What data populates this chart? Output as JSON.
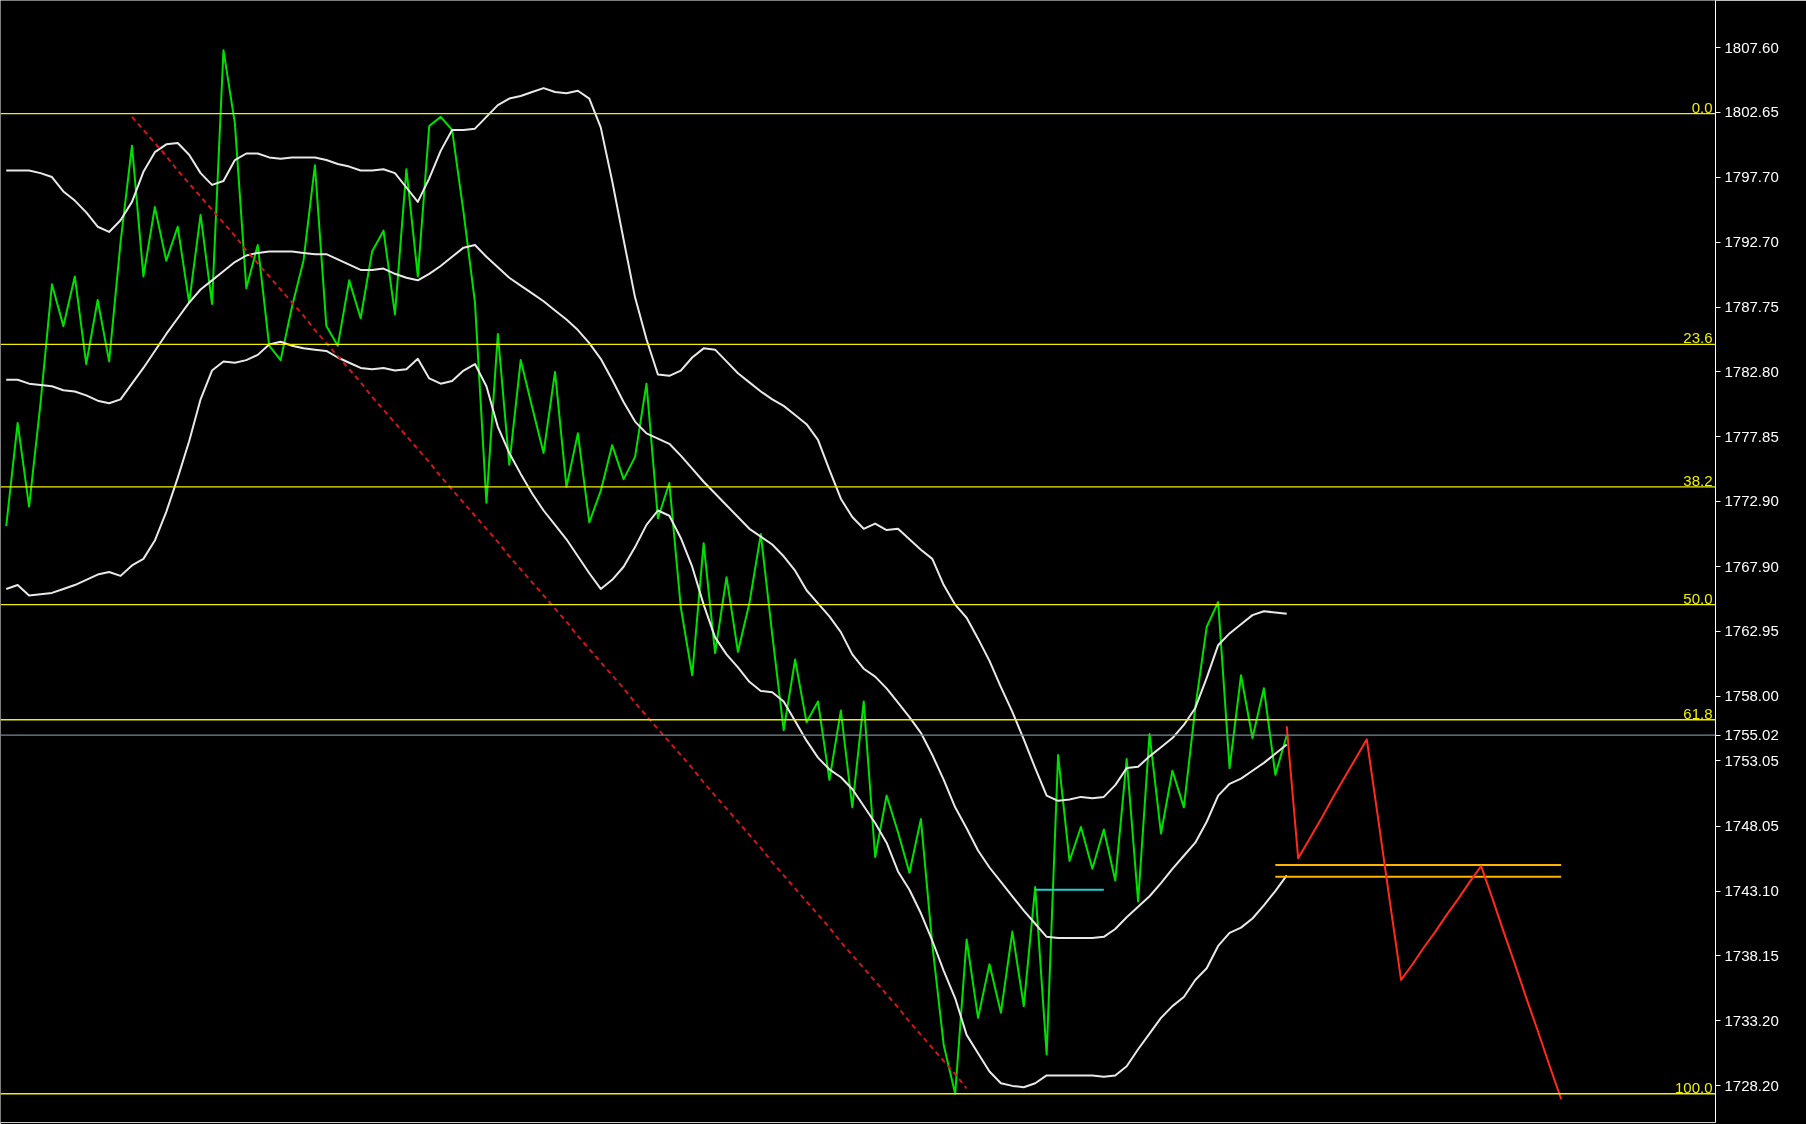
{
  "chart_data": {
    "type": "line",
    "categories": [
      null,
      null,
      null,
      null,
      null,
      null,
      null,
      null,
      null,
      null,
      null,
      null,
      null,
      null,
      null,
      null,
      null,
      null,
      null,
      null,
      null,
      null,
      null,
      null,
      null,
      null,
      null,
      null,
      null,
      null,
      null,
      null,
      null,
      null,
      null,
      null,
      null,
      null,
      null,
      null,
      null,
      null,
      null,
      null,
      null,
      null,
      null,
      null,
      null,
      null,
      null,
      null,
      null,
      null,
      null,
      null,
      null,
      null,
      null,
      null,
      null,
      null,
      null,
      null,
      null,
      null,
      null,
      null,
      null,
      null,
      null,
      null,
      null,
      null,
      null,
      null,
      null,
      null,
      null,
      null,
      null,
      null,
      null,
      null,
      null,
      null,
      null,
      null,
      null,
      null,
      null,
      null,
      null,
      null,
      null,
      null,
      null,
      null,
      null,
      null,
      null,
      null,
      null,
      null,
      null,
      null,
      null,
      null,
      null,
      null,
      null,
      null,
      null,
      null,
      null,
      null,
      null,
      null,
      null,
      null,
      null,
      null,
      null,
      null,
      null,
      null,
      null,
      null,
      null,
      null,
      null,
      null,
      null,
      null,
      null,
      null,
      null,
      null,
      null,
      null,
      null,
      null,
      null,
      null,
      null,
      null,
      null,
      null,
      null,
      null
    ],
    "ylim": [
      1725.4,
      1811.2
    ],
    "yticks": [
      {
        "value": 1807.6,
        "label": "1807.60"
      },
      {
        "value": 1802.65,
        "label": "1802.65"
      },
      {
        "value": 1797.7,
        "label": "1797.70"
      },
      {
        "value": 1792.7,
        "label": "1792.70"
      },
      {
        "value": 1787.75,
        "label": "1787.75"
      },
      {
        "value": 1782.8,
        "label": "1782.80"
      },
      {
        "value": 1777.85,
        "label": "1777.85"
      },
      {
        "value": 1772.9,
        "label": "1772.90"
      },
      {
        "value": 1767.9,
        "label": "1767.90"
      },
      {
        "value": 1762.95,
        "label": "1762.95"
      },
      {
        "value": 1758.0,
        "label": "1758.00"
      },
      {
        "value": 1755.02,
        "label": "1755.02"
      },
      {
        "value": 1753.05,
        "label": "1753.05"
      },
      {
        "value": 1748.05,
        "label": "1748.05"
      },
      {
        "value": 1743.1,
        "label": "1743.10"
      },
      {
        "value": 1738.15,
        "label": "1738.15"
      },
      {
        "value": 1733.2,
        "label": "1733.20"
      },
      {
        "value": 1728.2,
        "label": "1728.20"
      }
    ],
    "tick_labels": "y",
    "series": [
      {
        "color": "#00e000",
        "values": [
          1771.0,
          1778.9,
          1772.5,
          1780.4,
          1789.5,
          1786.3,
          1790.1,
          1783.4,
          1788.3,
          1783.6,
          1792.7,
          1800.1,
          1790.1,
          1795.4,
          1791.3,
          1793.9,
          1788.1,
          1794.8,
          1788.0,
          1807.4,
          1801.8,
          1789.2,
          1792.5,
          1784.8,
          1783.7,
          1787.8,
          1791.3,
          1798.6,
          1786.3,
          1784.8,
          1789.8,
          1786.9,
          1792.0,
          1793.6,
          1787.2,
          1798.3,
          1790.1,
          1801.6,
          1802.3,
          1801.3,
          1795.0,
          1788.1,
          1772.8,
          1785.7,
          1775.7,
          1783.7,
          1780.1,
          1776.6,
          1782.8,
          1774.0,
          1778.1,
          1771.3,
          1773.7,
          1777.2,
          1774.6,
          1776.3,
          1781.9,
          1771.6,
          1774.3,
          1764.8,
          1759.6,
          1769.7,
          1761.3,
          1767.1,
          1761.4,
          1765.1,
          1770.4,
          1762.7,
          1755.4,
          1760.8,
          1756.0,
          1757.6,
          1751.6,
          1756.9,
          1749.5,
          1757.6,
          1745.7,
          1750.4,
          1747.6,
          1744.5,
          1748.6,
          1739.0,
          1731.3,
          1727.6,
          1739.4,
          1733.4,
          1737.5,
          1733.8,
          1740.0,
          1734.3,
          1743.4,
          1730.6,
          1753.5,
          1745.4,
          1748.0,
          1744.8,
          1747.8,
          1743.9,
          1753.2,
          1742.3,
          1755.1,
          1747.5,
          1752.3,
          1749.5,
          1757.1,
          1763.3,
          1765.2,
          1752.5,
          1759.6,
          1754.8,
          1758.6,
          1752.0,
          1755.0,
          null,
          null,
          null,
          null,
          null,
          null,
          null,
          null,
          null,
          null,
          null,
          null,
          null,
          null,
          null,
          null,
          null,
          null,
          null,
          null,
          null,
          null,
          null,
          null,
          null,
          null,
          null,
          null,
          null,
          null,
          null,
          null,
          null,
          null,
          null,
          null,
          null
        ]
      },
      {
        "color": "#e8e8e8",
        "values": [
          1798.2,
          1798.2,
          1798.2,
          1798.0,
          1797.7,
          1796.6,
          1795.9,
          1795.0,
          1793.9,
          1793.5,
          1794.4,
          1795.8,
          1798.1,
          1799.6,
          1800.2,
          1800.3,
          1799.4,
          1798.0,
          1797.1,
          1797.4,
          1799.0,
          1799.5,
          1799.5,
          1799.2,
          1799.1,
          1799.2,
          1799.2,
          1799.2,
          1799.0,
          1798.7,
          1798.5,
          1798.2,
          1798.2,
          1798.3,
          1798.0,
          1796.9,
          1795.8,
          1797.6,
          1799.7,
          1801.3,
          1801.3,
          1801.4,
          1802.3,
          1803.2,
          1803.7,
          1803.9,
          1804.2,
          1804.5,
          1804.2,
          1804.1,
          1804.3,
          1803.7,
          1801.5,
          1797.4,
          1792.9,
          1788.5,
          1785.3,
          1782.6,
          1782.5,
          1782.9,
          1783.9,
          1784.6,
          1784.5,
          1783.6,
          1782.7,
          1782.0,
          1781.3,
          1780.7,
          1780.2,
          1779.5,
          1778.8,
          1777.6,
          1775.3,
          1773.1,
          1771.7,
          1770.8,
          1771.2,
          1770.7,
          1770.8,
          1770.0,
          1769.2,
          1768.5,
          1766.5,
          1765.0,
          1764.0,
          1762.4,
          1760.7,
          1758.7,
          1756.8,
          1754.7,
          1752.5,
          1750.4,
          1750.0,
          1750.1,
          1750.3,
          1750.2,
          1750.3,
          1751.2,
          1752.5,
          1752.6,
          1753.4,
          1754.1,
          1754.8,
          1755.8,
          1757.1,
          1759.4,
          1761.9,
          1762.8,
          1763.5,
          1764.2,
          1764.5,
          1764.4,
          1764.3,
          null,
          null,
          null,
          null,
          null,
          null,
          null,
          null,
          null,
          null,
          null,
          null,
          null,
          null,
          null,
          null,
          null,
          null,
          null,
          null,
          null,
          null,
          null,
          null,
          null,
          null,
          null,
          null,
          null,
          null,
          null,
          null,
          null,
          null,
          null,
          null,
          null
        ]
      },
      {
        "color": "#e8e8e8",
        "values": [
          1782.2,
          1782.2,
          1781.9,
          1781.8,
          1781.7,
          1781.4,
          1781.3,
          1781.0,
          1780.6,
          1780.4,
          1780.7,
          1781.9,
          1783.1,
          1784.4,
          1785.7,
          1786.9,
          1788.1,
          1789.1,
          1789.8,
          1790.5,
          1791.2,
          1791.7,
          1791.9,
          1792.0,
          1792.0,
          1792.0,
          1791.9,
          1791.8,
          1791.8,
          1791.4,
          1791.0,
          1790.6,
          1790.6,
          1790.7,
          1790.3,
          1790.0,
          1789.8,
          1790.3,
          1790.9,
          1791.6,
          1792.3,
          1792.5,
          1791.6,
          1790.8,
          1790.0,
          1789.4,
          1788.8,
          1788.2,
          1787.5,
          1786.8,
          1786.0,
          1785.0,
          1783.8,
          1782.2,
          1780.5,
          1779.0,
          1778.1,
          1777.7,
          1777.3,
          1776.4,
          1775.4,
          1774.4,
          1773.5,
          1772.6,
          1771.7,
          1770.8,
          1770.2,
          1769.6,
          1768.7,
          1767.6,
          1766.1,
          1765.1,
          1764.1,
          1762.9,
          1761.2,
          1760.1,
          1759.5,
          1758.6,
          1757.5,
          1756.4,
          1755.2,
          1753.5,
          1751.6,
          1749.5,
          1747.9,
          1746.2,
          1744.9,
          1743.8,
          1742.7,
          1741.6,
          1740.6,
          1739.6,
          1739.5,
          1739.5,
          1739.5,
          1739.5,
          1739.6,
          1740.2,
          1741.1,
          1741.9,
          1742.7,
          1743.7,
          1744.8,
          1745.8,
          1746.8,
          1748.4,
          1750.4,
          1751.3,
          1751.7,
          1752.3,
          1752.9,
          1753.6,
          1754.3,
          null,
          null,
          null,
          null,
          null,
          null,
          null,
          null,
          null,
          null,
          null,
          null,
          null,
          null,
          null,
          null,
          null,
          null,
          null,
          null,
          null,
          null,
          null,
          null,
          null,
          null,
          null,
          null,
          null,
          null,
          null,
          null,
          null,
          null,
          null,
          null,
          null
        ]
      },
      {
        "color": "#e8e8e8",
        "values": [
          1766.2,
          1766.5,
          1765.7,
          1765.8,
          1765.9,
          1766.2,
          1766.5,
          1766.9,
          1767.3,
          1767.5,
          1767.2,
          1768.0,
          1768.5,
          1769.9,
          1772.1,
          1774.7,
          1777.5,
          1780.7,
          1782.9,
          1783.6,
          1783.5,
          1783.7,
          1784.1,
          1784.9,
          1785.1,
          1784.8,
          1784.6,
          1784.5,
          1784.4,
          1783.9,
          1783.5,
          1783.1,
          1783.0,
          1783.1,
          1782.9,
          1783.0,
          1783.8,
          1782.3,
          1781.9,
          1782.1,
          1782.9,
          1783.4,
          1781.7,
          1778.6,
          1776.6,
          1775.0,
          1773.5,
          1772.2,
          1771.1,
          1770.0,
          1768.7,
          1767.4,
          1766.2,
          1766.9,
          1767.9,
          1769.4,
          1771.1,
          1772.2,
          1771.8,
          1770.1,
          1767.9,
          1765.0,
          1762.5,
          1761.2,
          1760.2,
          1759.1,
          1758.4,
          1758.3,
          1757.6,
          1756.1,
          1754.6,
          1753.3,
          1752.4,
          1751.8,
          1750.9,
          1749.6,
          1748.3,
          1746.8,
          1744.6,
          1743.2,
          1741.4,
          1739.3,
          1737.0,
          1734.9,
          1732.1,
          1730.7,
          1729.3,
          1728.4,
          1728.2,
          1728.1,
          1728.4,
          1729.0,
          1729.0,
          1729.0,
          1729.0,
          1729.0,
          1728.9,
          1729.0,
          1729.7,
          1731.0,
          1732.2,
          1733.4,
          1734.3,
          1735.0,
          1736.3,
          1737.2,
          1738.9,
          1739.9,
          1740.3,
          1741.0,
          1742.0,
          1743.1,
          1744.3,
          null,
          null,
          null,
          null,
          null,
          null,
          null,
          null,
          null,
          null,
          null,
          null,
          null,
          null,
          null,
          null,
          null,
          null,
          null,
          null,
          null,
          null,
          null,
          null,
          null,
          null,
          null,
          null,
          null,
          null,
          null,
          null,
          null,
          null,
          null,
          null,
          null
        ]
      },
      {
        "color": "#d01818",
        "line_style": "dashed",
        "values": [
          null,
          null,
          null,
          null,
          null,
          null,
          null,
          null,
          null,
          null,
          null,
          1802.3,
          1801.3,
          1800.3,
          1799.3,
          1798.2,
          1797.2,
          1796.2,
          1795.2,
          1794.2,
          1793.2,
          1792.1,
          1791.1,
          1790.1,
          1789.1,
          1788.1,
          1787.1,
          1786.0,
          1785.0,
          1784.0,
          1783.0,
          1782.0,
          1780.9,
          1779.9,
          1778.9,
          1777.9,
          1776.9,
          1775.9,
          1774.8,
          1773.8,
          1772.8,
          1771.8,
          1770.8,
          1769.8,
          1768.7,
          1767.7,
          1766.7,
          1765.7,
          1764.7,
          1763.7,
          1762.6,
          1761.6,
          1760.6,
          1759.6,
          1758.6,
          1757.5,
          1756.5,
          1755.5,
          1754.5,
          1753.5,
          1752.5,
          1751.4,
          1750.4,
          1749.4,
          1748.4,
          1747.4,
          1746.4,
          1745.3,
          1744.3,
          1743.3,
          1742.3,
          1741.3,
          1740.3,
          1739.2,
          1738.2,
          1737.2,
          1736.2,
          1735.2,
          1734.2,
          1733.1,
          1732.1,
          1731.1,
          1730.1,
          1729.1,
          1728.0,
          null,
          null,
          null,
          null,
          null,
          null,
          null,
          null,
          null,
          null,
          null,
          null,
          null,
          null,
          null,
          null,
          null,
          null,
          null,
          null,
          null,
          null,
          null,
          null,
          null,
          null,
          null,
          null,
          null,
          null,
          null,
          null,
          null,
          null,
          null,
          null,
          null,
          null,
          null,
          null,
          null,
          null,
          null,
          null,
          null,
          null,
          null,
          null,
          null,
          null,
          null,
          null,
          null,
          null,
          null,
          null,
          null,
          null,
          null,
          null,
          null,
          null,
          null,
          null,
          null
        ]
      },
      {
        "color": "#20d0d0",
        "values": [
          null,
          null,
          null,
          null,
          null,
          null,
          null,
          null,
          null,
          null,
          null,
          null,
          null,
          null,
          null,
          null,
          null,
          null,
          null,
          null,
          null,
          null,
          null,
          null,
          null,
          null,
          null,
          null,
          null,
          null,
          null,
          null,
          null,
          null,
          null,
          null,
          null,
          null,
          null,
          null,
          null,
          null,
          null,
          null,
          null,
          null,
          null,
          null,
          null,
          null,
          null,
          null,
          null,
          null,
          null,
          null,
          null,
          null,
          null,
          null,
          null,
          null,
          null,
          null,
          null,
          null,
          null,
          null,
          null,
          null,
          null,
          null,
          null,
          null,
          null,
          null,
          null,
          null,
          null,
          null,
          null,
          null,
          null,
          null,
          null,
          null,
          null,
          null,
          null,
          null,
          1743.2,
          1743.2,
          1743.2,
          1743.2,
          1743.2,
          1743.2,
          1743.2,
          null,
          null,
          null,
          null,
          null,
          null,
          null,
          null,
          null,
          null,
          null,
          null,
          null,
          null,
          null,
          null,
          null,
          null,
          null,
          null,
          null,
          null,
          null,
          null,
          null,
          null,
          null,
          null,
          null,
          null,
          null,
          null,
          null,
          null,
          null,
          null,
          null,
          null,
          null,
          null,
          null,
          null,
          null,
          null,
          null,
          null,
          null,
          null,
          null,
          null,
          null,
          null,
          null
        ]
      },
      {
        "color": "#ffb400",
        "values": [
          null,
          null,
          null,
          null,
          null,
          null,
          null,
          null,
          null,
          null,
          null,
          null,
          null,
          null,
          null,
          null,
          null,
          null,
          null,
          null,
          null,
          null,
          null,
          null,
          null,
          null,
          null,
          null,
          null,
          null,
          null,
          null,
          null,
          null,
          null,
          null,
          null,
          null,
          null,
          null,
          null,
          null,
          null,
          null,
          null,
          null,
          null,
          null,
          null,
          null,
          null,
          null,
          null,
          null,
          null,
          null,
          null,
          null,
          null,
          null,
          null,
          null,
          null,
          null,
          null,
          null,
          null,
          null,
          null,
          null,
          null,
          null,
          null,
          null,
          null,
          null,
          null,
          null,
          null,
          null,
          null,
          null,
          null,
          null,
          null,
          null,
          null,
          null,
          null,
          null,
          null,
          null,
          null,
          null,
          null,
          null,
          null,
          null,
          null,
          null,
          null,
          null,
          null,
          null,
          null,
          null,
          null,
          null,
          null,
          null,
          null,
          1745.1,
          1745.1,
          1745.1,
          1745.1,
          1745.1,
          1745.1,
          1745.1,
          1745.1,
          1745.1,
          1745.1,
          1745.1,
          1745.1,
          1745.1,
          1745.1,
          1745.1,
          1745.1,
          1745.1,
          1745.1,
          1745.1,
          1745.1,
          1745.1,
          1745.1,
          1745.1,
          1745.1,
          1745.1,
          1745.1,
          null,
          null,
          null,
          null,
          null,
          null,
          null,
          null,
          null,
          null,
          null,
          null,
          null
        ]
      },
      {
        "color": "#ffb400",
        "values": [
          null,
          null,
          null,
          null,
          null,
          null,
          null,
          null,
          null,
          null,
          null,
          null,
          null,
          null,
          null,
          null,
          null,
          null,
          null,
          null,
          null,
          null,
          null,
          null,
          null,
          null,
          null,
          null,
          null,
          null,
          null,
          null,
          null,
          null,
          null,
          null,
          null,
          null,
          null,
          null,
          null,
          null,
          null,
          null,
          null,
          null,
          null,
          null,
          null,
          null,
          null,
          null,
          null,
          null,
          null,
          null,
          null,
          null,
          null,
          null,
          null,
          null,
          null,
          null,
          null,
          null,
          null,
          null,
          null,
          null,
          null,
          null,
          null,
          null,
          null,
          null,
          null,
          null,
          null,
          null,
          null,
          null,
          null,
          null,
          null,
          null,
          null,
          null,
          null,
          null,
          null,
          null,
          null,
          null,
          null,
          null,
          null,
          null,
          null,
          null,
          null,
          null,
          null,
          null,
          null,
          null,
          null,
          null,
          null,
          null,
          null,
          1744.2,
          1744.2,
          1744.2,
          1744.2,
          1744.2,
          1744.2,
          1744.2,
          1744.2,
          1744.2,
          1744.2,
          1744.2,
          1744.2,
          1744.2,
          1744.2,
          1744.2,
          1744.2,
          1744.2,
          1744.2,
          1744.2,
          1744.2,
          1744.2,
          1744.2,
          1744.2,
          1744.2,
          1744.2,
          1744.2,
          null,
          null,
          null,
          null,
          null,
          null,
          null,
          null,
          null,
          null,
          null,
          null,
          null
        ]
      },
      {
        "color": "#ff2a1a",
        "values": [
          null,
          null,
          null,
          null,
          null,
          null,
          null,
          null,
          null,
          null,
          null,
          null,
          null,
          null,
          null,
          null,
          null,
          null,
          null,
          null,
          null,
          null,
          null,
          null,
          null,
          null,
          null,
          null,
          null,
          null,
          null,
          null,
          null,
          null,
          null,
          null,
          null,
          null,
          null,
          null,
          null,
          null,
          null,
          null,
          null,
          null,
          null,
          null,
          null,
          null,
          null,
          null,
          null,
          null,
          null,
          null,
          null,
          null,
          null,
          null,
          null,
          null,
          null,
          null,
          null,
          null,
          null,
          null,
          null,
          null,
          null,
          null,
          null,
          null,
          null,
          null,
          null,
          null,
          null,
          null,
          null,
          null,
          null,
          null,
          null,
          null,
          null,
          null,
          null,
          null,
          null,
          null,
          null,
          null,
          null,
          null,
          null,
          null,
          null,
          null,
          null,
          null,
          null,
          null,
          null,
          null,
          null,
          null,
          null,
          null,
          null,
          null,
          1755.7,
          1745.6,
          1747.1,
          1748.6,
          1750.2,
          1751.7,
          1753.2,
          1754.7,
          1748.6,
          1742.4,
          1736.3,
          1737.5,
          1738.8,
          1740.0,
          1741.3,
          1742.5,
          1743.8,
          1745.0,
          1742.5,
          1739.9,
          1737.4,
          1734.8,
          1732.3,
          1729.7,
          1727.2,
          null,
          null,
          null,
          null,
          null,
          null,
          null,
          null,
          null,
          null,
          null,
          null,
          null
        ]
      }
    ],
    "ref_lines": [
      {
        "axis": "y",
        "value": 1802.55,
        "color": "#f0f000"
      },
      {
        "axis": "y",
        "value": 1784.9,
        "color": "#f0f000"
      },
      {
        "axis": "y",
        "value": 1774.0,
        "color": "#f0f000"
      },
      {
        "axis": "y",
        "value": 1765.0,
        "color": "#f0f000"
      },
      {
        "axis": "y",
        "value": 1756.2,
        "color": "#f0f000"
      },
      {
        "axis": "y",
        "value": 1727.6,
        "color": "#f0f000"
      },
      {
        "axis": "y",
        "value": 1755.02,
        "color": "#7a8794"
      }
    ],
    "annotations": [
      {
        "text": "0.0",
        "y": 1802.55
      },
      {
        "text": "23.6",
        "y": 1784.9
      },
      {
        "text": "38.2",
        "y": 1774.0
      },
      {
        "text": "50.0",
        "y": 1765.0
      },
      {
        "text": "61.8",
        "y": 1756.2
      },
      {
        "text": "100.0",
        "y": 1727.6
      }
    ]
  }
}
